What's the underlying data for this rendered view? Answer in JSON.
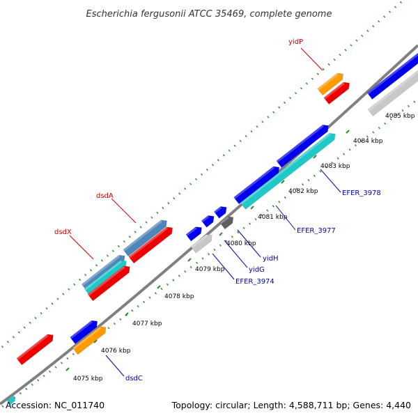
{
  "title": "Escherichia fergusonii ATCC 35469, complete genome",
  "footer": {
    "accession": "Accession: NC_011740",
    "summary": "Topology: circular; Length: 4,588,711 bp; Genes: 4,440"
  },
  "colors": {
    "backbone": "#808080",
    "gc_ring": "#2e8b2e",
    "label_red": "#cc0000",
    "label_blue": "#0000aa",
    "gene_blue": "#0000ee",
    "gene_cyan": "#20c8c8",
    "gene_red": "#ee0000",
    "gene_orange": "#ff9a00",
    "gene_steel": "#4f86b8",
    "gene_gray": "#c8c8c8",
    "gene_dark": "#606060"
  },
  "ticks": [
    {
      "label": "4075 kbp"
    },
    {
      "label": "4076 kbp"
    },
    {
      "label": "4077 kbp"
    },
    {
      "label": "4078 kbp"
    },
    {
      "label": "4079 kbp"
    },
    {
      "label": "4080 kbp"
    },
    {
      "label": "4081 kbp"
    },
    {
      "label": "4082 kbp"
    },
    {
      "label": "4083 kbp"
    },
    {
      "label": "4084 kbp"
    },
    {
      "label": "4085 kbp"
    }
  ],
  "gene_labels": [
    {
      "name": "yidP",
      "color": "red"
    },
    {
      "name": "dsdA",
      "color": "red"
    },
    {
      "name": "dsdX",
      "color": "red"
    },
    {
      "name": "EFER_3978",
      "color": "blue"
    },
    {
      "name": "EFER_3977",
      "color": "blue"
    },
    {
      "name": "yidH",
      "color": "blue"
    },
    {
      "name": "yidG",
      "color": "blue"
    },
    {
      "name": "EFER_3974",
      "color": "blue"
    },
    {
      "name": "dsdC",
      "color": "blue"
    }
  ]
}
